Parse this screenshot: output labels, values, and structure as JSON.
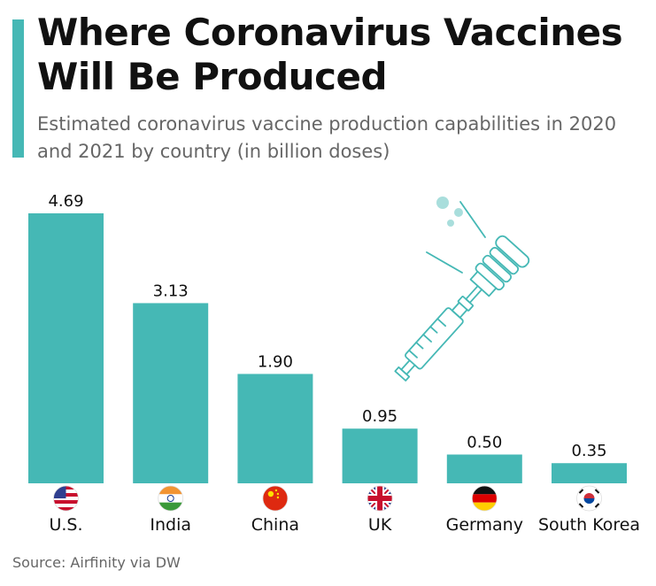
{
  "header": {
    "title": "Where Coronavirus Vaccines Will Be Produced",
    "subtitle": "Estimated coronavirus vaccine production capabilities in 2020 and 2021 by country (in billion doses)"
  },
  "footer": {
    "source": "Source: Airfinity via DW"
  },
  "colors": {
    "bar": "#45b8b5",
    "accent": "#45b8b5",
    "text": "#111111",
    "muted": "#666666",
    "illustration": "#45b8b5"
  },
  "illustration": {
    "icon": "vaccine-syringe-icon"
  },
  "chart_data": {
    "type": "bar",
    "categories": [
      "U.S.",
      "India",
      "China",
      "UK",
      "Germany",
      "South Korea"
    ],
    "values": [
      4.69,
      3.13,
      1.9,
      0.95,
      0.5,
      0.35
    ],
    "value_labels": [
      "4.69",
      "3.13",
      "1.90",
      "0.95",
      "0.50",
      "0.35"
    ],
    "flags": [
      "us-flag-icon",
      "india-flag-icon",
      "china-flag-icon",
      "uk-flag-icon",
      "germany-flag-icon",
      "south-korea-flag-icon"
    ],
    "title": "Where Coronavirus Vaccines Will Be Produced",
    "subtitle": "Estimated coronavirus vaccine production capabilities in 2020 and 2021 by country (in billion doses)",
    "xlabel": "",
    "ylabel": "",
    "ylim": [
      0,
      4.69
    ],
    "grid": false,
    "legend": "none"
  }
}
